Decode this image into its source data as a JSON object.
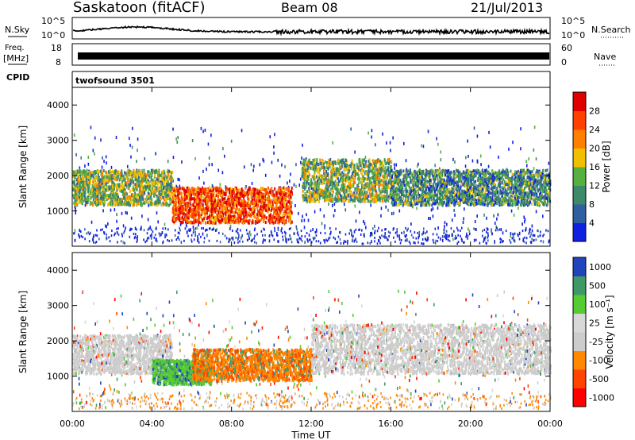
{
  "header": {
    "site": "Saskatoon (fitACF)",
    "beam": "Beam 08",
    "date": "21/Jul/2013"
  },
  "noise_panel": {
    "left_label": "N.Sky",
    "right_label": "N.Search",
    "y_top": "10^5",
    "y_bottom": "10^0"
  },
  "freq_panel": {
    "left_label_1": "Freq.",
    "left_label_2": "[MHz]",
    "left_tick_top": "18",
    "left_tick_bottom": "8",
    "right_label": "Nave",
    "right_tick_top": "60",
    "right_tick_bottom": "0"
  },
  "cpid_panel": {
    "label": "CPID",
    "program": "twofsound 3501"
  },
  "x_axis": {
    "label": "Time UT",
    "ticks": [
      "00:00",
      "04:00",
      "08:00",
      "12:00",
      "16:00",
      "20:00",
      "00:00"
    ]
  },
  "colors": {
    "power": [
      "#1020e0",
      "#2f5fa0",
      "#3e8a68",
      "#55b040",
      "#f0c000",
      "#ff8000",
      "#ff4000",
      "#e00000"
    ],
    "velocity": [
      "#ff0000",
      "#ff4400",
      "#ff8800",
      "#cccccc",
      "#d8d8d8",
      "#55cc33",
      "#3f9966",
      "#2244bb"
    ]
  },
  "chart_data": [
    {
      "type": "heatmap",
      "parameter": "Power",
      "ylabel": "Slant Range [km]",
      "xlabel": "",
      "x_range_hours": [
        0,
        24
      ],
      "ylim": [
        0,
        4500
      ],
      "y_ticks": [
        "1000",
        "2000",
        "3000",
        "4000"
      ],
      "colorbar": {
        "label": "Power [dB]",
        "ticks": [
          "4",
          "8",
          "12",
          "16",
          "20",
          "24",
          "28"
        ],
        "range": [
          0,
          30
        ]
      },
      "bands": [
        {
          "t_start": 0,
          "t_end": 5,
          "range_low": 1200,
          "range_high": 2200,
          "level_db": 14
        },
        {
          "t_start": 5,
          "t_end": 11,
          "range_low": 700,
          "range_high": 1700,
          "level_db": 26
        },
        {
          "t_start": 11.5,
          "t_end": 16,
          "range_low": 1300,
          "range_high": 2500,
          "level_db": 14
        },
        {
          "t_start": 16,
          "t_end": 24,
          "range_low": 1200,
          "range_high": 2200,
          "level_db": 10
        }
      ]
    },
    {
      "type": "heatmap",
      "parameter": "Velocity",
      "ylabel": "Slant Range [km]",
      "xlabel": "Time UT",
      "x_range_hours": [
        0,
        24
      ],
      "ylim": [
        0,
        4500
      ],
      "y_ticks": [
        "1000",
        "2000",
        "3000",
        "4000"
      ],
      "colorbar": {
        "label": "Velocity [m s⁻¹]",
        "ticks": [
          "1000",
          "500",
          "100",
          "25",
          "-25",
          "-100",
          "-500",
          "-1000"
        ],
        "range": [
          -1000,
          1000
        ]
      },
      "bands": [
        {
          "t_start": 0,
          "t_end": 5,
          "range_low": 1100,
          "range_high": 2200,
          "velocity": 0
        },
        {
          "t_start": 4,
          "t_end": 7,
          "range_low": 800,
          "range_high": 1500,
          "velocity": 200
        },
        {
          "t_start": 6,
          "t_end": 12,
          "range_low": 900,
          "range_high": 1800,
          "velocity": -300
        },
        {
          "t_start": 12,
          "t_end": 24,
          "range_low": 1100,
          "range_high": 2500,
          "velocity": 0
        }
      ]
    }
  ]
}
